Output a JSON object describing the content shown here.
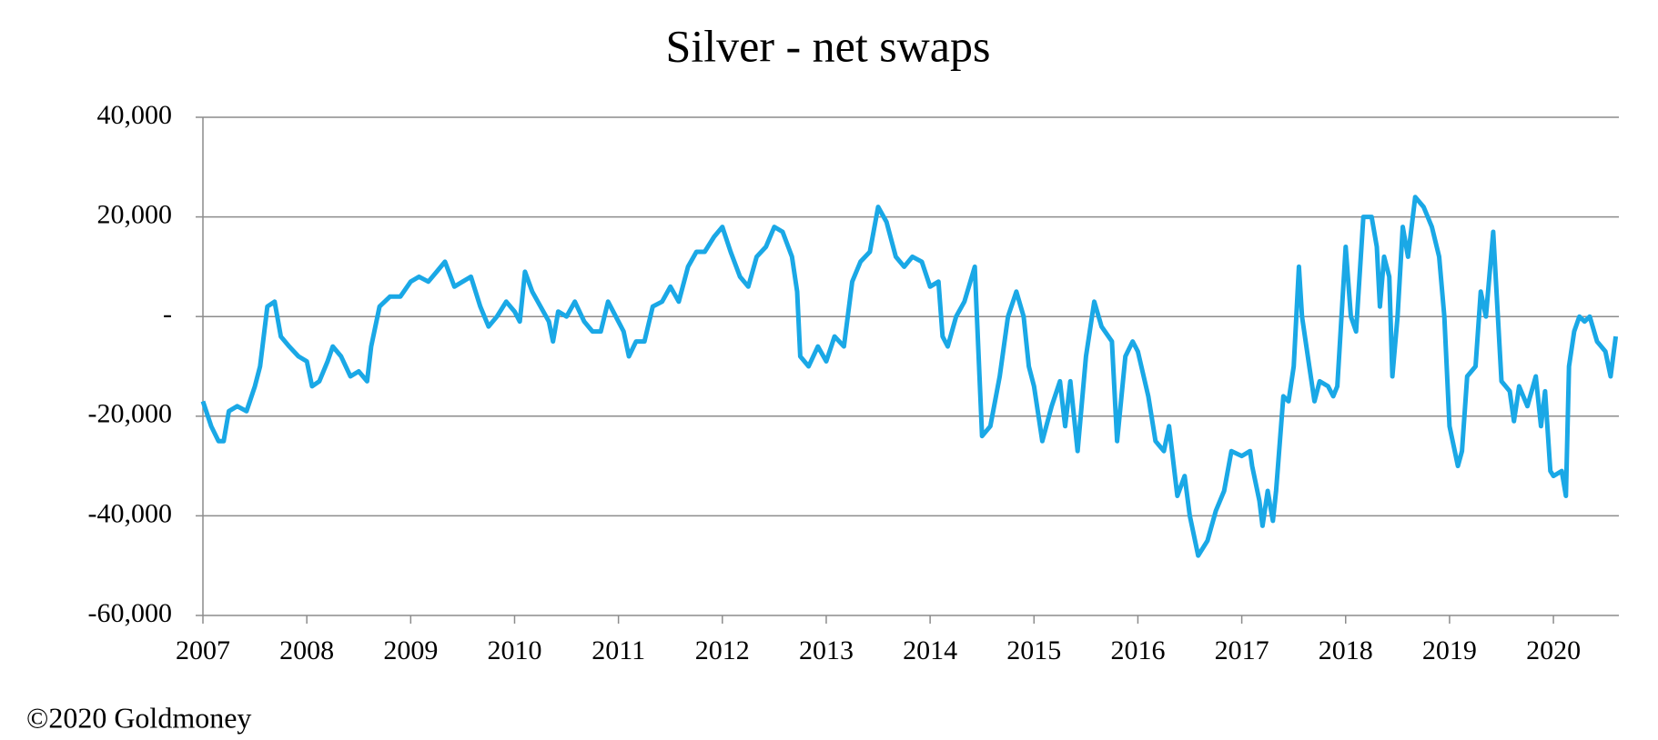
{
  "chart_data": {
    "type": "line",
    "title": "Silver - net swaps",
    "footer": "©2020 Goldmoney",
    "x": [
      2007.0,
      2007.08,
      2007.15,
      2007.2,
      2007.25,
      2007.33,
      2007.42,
      2007.5,
      2007.55,
      2007.62,
      2007.69,
      2007.75,
      2007.83,
      2007.92,
      2008.0,
      2008.05,
      2008.12,
      2008.2,
      2008.25,
      2008.33,
      2008.42,
      2008.5,
      2008.58,
      2008.62,
      2008.7,
      2008.8,
      2008.9,
      2009.0,
      2009.08,
      2009.17,
      2009.25,
      2009.33,
      2009.42,
      2009.5,
      2009.58,
      2009.67,
      2009.75,
      2009.83,
      2009.92,
      2010.0,
      2010.05,
      2010.1,
      2010.17,
      2010.25,
      2010.33,
      2010.37,
      2010.42,
      2010.5,
      2010.58,
      2010.67,
      2010.75,
      2010.83,
      2010.9,
      2011.0,
      2011.05,
      2011.1,
      2011.17,
      2011.25,
      2011.33,
      2011.42,
      2011.5,
      2011.58,
      2011.67,
      2011.75,
      2011.83,
      2011.92,
      2012.0,
      2012.08,
      2012.17,
      2012.25,
      2012.33,
      2012.42,
      2012.5,
      2012.58,
      2012.67,
      2012.72,
      2012.75,
      2012.83,
      2012.92,
      2013.0,
      2013.08,
      2013.17,
      2013.25,
      2013.33,
      2013.42,
      2013.5,
      2013.58,
      2013.67,
      2013.75,
      2013.83,
      2013.92,
      2014.0,
      2014.08,
      2014.12,
      2014.17,
      2014.25,
      2014.33,
      2014.43,
      2014.5,
      2014.58,
      2014.67,
      2014.75,
      2014.83,
      2014.9,
      2014.95,
      2015.0,
      2015.08,
      2015.17,
      2015.25,
      2015.3,
      2015.35,
      2015.42,
      2015.5,
      2015.58,
      2015.65,
      2015.75,
      2015.8,
      2015.88,
      2015.95,
      2016.0,
      2016.1,
      2016.17,
      2016.25,
      2016.3,
      2016.38,
      2016.45,
      2016.5,
      2016.58,
      2016.67,
      2016.75,
      2016.83,
      2016.9,
      2017.0,
      2017.08,
      2017.1,
      2017.17,
      2017.2,
      2017.25,
      2017.3,
      2017.33,
      2017.4,
      2017.45,
      2017.5,
      2017.55,
      2017.58,
      2017.65,
      2017.7,
      2017.75,
      2017.83,
      2017.88,
      2017.92,
      2018.0,
      2018.05,
      2018.1,
      2018.17,
      2018.25,
      2018.3,
      2018.33,
      2018.37,
      2018.42,
      2018.45,
      2018.5,
      2018.55,
      2018.6,
      2018.67,
      2018.75,
      2018.83,
      2018.9,
      2018.95,
      2019.0,
      2019.08,
      2019.12,
      2019.17,
      2019.25,
      2019.3,
      2019.35,
      2019.42,
      2019.5,
      2019.58,
      2019.62,
      2019.67,
      2019.75,
      2019.83,
      2019.88,
      2019.92,
      2019.97,
      2020.0,
      2020.08,
      2020.12,
      2020.15,
      2020.2,
      2020.25,
      2020.3,
      2020.35,
      2020.42,
      2020.5,
      2020.55,
      2020.6
    ],
    "series": [
      {
        "name": "net swaps",
        "color": "#1aa8e6",
        "values": [
          -17000,
          -22000,
          -25000,
          -25000,
          -19000,
          -18000,
          -19000,
          -14000,
          -10000,
          2000,
          3000,
          -4000,
          -6000,
          -8000,
          -9000,
          -14000,
          -13000,
          -9000,
          -6000,
          -8000,
          -12000,
          -11000,
          -13000,
          -6000,
          2000,
          4000,
          4000,
          7000,
          8000,
          7000,
          9000,
          11000,
          6000,
          7000,
          8000,
          2000,
          -2000,
          0,
          3000,
          1000,
          -1000,
          9000,
          5000,
          2000,
          -1000,
          -5000,
          1000,
          0,
          3000,
          -1000,
          -3000,
          -3000,
          3000,
          -1000,
          -3000,
          -8000,
          -5000,
          -5000,
          2000,
          3000,
          6000,
          3000,
          10000,
          13000,
          13000,
          16000,
          18000,
          13000,
          8000,
          6000,
          12000,
          14000,
          18000,
          17000,
          12000,
          5000,
          -8000,
          -10000,
          -6000,
          -9000,
          -4000,
          -6000,
          7000,
          11000,
          13000,
          22000,
          19000,
          12000,
          10000,
          12000,
          11000,
          6000,
          7000,
          -4000,
          -6000,
          0,
          3000,
          10000,
          -24000,
          -22000,
          -12000,
          0,
          5000,
          0,
          -10000,
          -14000,
          -25000,
          -18000,
          -13000,
          -22000,
          -13000,
          -27000,
          -8000,
          3000,
          -2000,
          -5000,
          -25000,
          -8000,
          -5000,
          -7000,
          -16000,
          -25000,
          -27000,
          -22000,
          -36000,
          -32000,
          -40000,
          -48000,
          -45000,
          -39000,
          -35000,
          -27000,
          -28000,
          -27000,
          -30000,
          -37000,
          -42000,
          -35000,
          -41000,
          -35000,
          -16000,
          -17000,
          -10000,
          10000,
          0,
          -10000,
          -17000,
          -13000,
          -14000,
          -16000,
          -14000,
          14000,
          0,
          -3000,
          20000,
          20000,
          14000,
          2000,
          12000,
          8000,
          -12000,
          0,
          18000,
          12000,
          24000,
          22000,
          18000,
          12000,
          0,
          -22000,
          -30000,
          -27000,
          -12000,
          -10000,
          5000,
          0,
          17000,
          -13000,
          -15000,
          -21000,
          -14000,
          -18000,
          -12000,
          -22000,
          -15000,
          -31000,
          -32000,
          -31000,
          -36000,
          -10000,
          -3000,
          0,
          -1000,
          0,
          -5000,
          -7000,
          -12000,
          -4000
        ]
      }
    ],
    "xlim": [
      2007,
      2020.63
    ],
    "xticks": [
      2007,
      2008,
      2009,
      2010,
      2011,
      2012,
      2013,
      2014,
      2015,
      2016,
      2017,
      2018,
      2019,
      2020
    ],
    "ylim": [
      -60000,
      40000
    ],
    "yticks": [
      {
        "value": -60000,
        "label": "-60,000"
      },
      {
        "value": -40000,
        "label": "-40,000"
      },
      {
        "value": -20000,
        "label": "-20,000"
      },
      {
        "value": 0,
        "label": "-"
      },
      {
        "value": 20000,
        "label": "20,000"
      },
      {
        "value": 40000,
        "label": "40,000"
      }
    ],
    "grid": true
  }
}
